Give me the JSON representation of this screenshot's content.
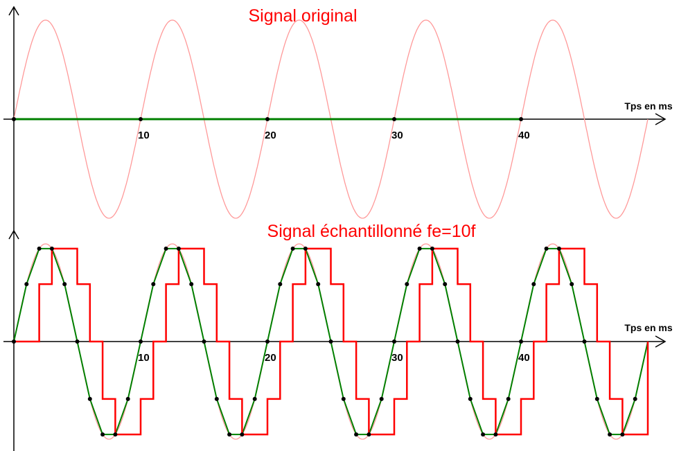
{
  "chart_data": [
    {
      "type": "line",
      "title": "Signal original",
      "xlabel": "Tps en ms",
      "ylabel": "",
      "x_ticks": [
        10,
        20,
        30,
        40
      ],
      "xlim": [
        0,
        50
      ],
      "ylim": [
        -1,
        1
      ],
      "grid": false,
      "series": [
        {
          "kind": "sine",
          "amplitude": 1,
          "period_ms": 10,
          "x_range": [
            0,
            50
          ],
          "color": "#ff9999"
        },
        {
          "kind": "constant",
          "value": 0,
          "x_range": [
            0,
            40
          ],
          "color": "#008000"
        }
      ],
      "markers": {
        "x": [
          0,
          10,
          20,
          30,
          40
        ],
        "y": [
          0,
          0,
          0,
          0,
          0
        ],
        "color": "#000000"
      }
    },
    {
      "type": "line",
      "title": "Signal échantillonné fe=10f",
      "xlabel": "Tps en ms",
      "ylabel": "",
      "x_ticks": [
        10,
        20,
        30,
        40
      ],
      "xlim": [
        0,
        50
      ],
      "ylim": [
        -1,
        1
      ],
      "grid": false,
      "sampling_period_ms": 1,
      "series": [
        {
          "kind": "sine",
          "amplitude": 1,
          "period_ms": 10,
          "x_range": [
            0,
            50
          ],
          "color": "#ff9999"
        },
        {
          "kind": "sampled-linear",
          "x_range": [
            0,
            50
          ],
          "color": "#008000"
        },
        {
          "kind": "zero-order-hold",
          "x_range": [
            0,
            50
          ],
          "color": "#ff0000"
        }
      ],
      "markers": {
        "x_range": [
          0,
          49
        ],
        "step_ms": 1,
        "color": "#000000"
      }
    }
  ],
  "colors": {
    "signal": "#ff9999",
    "sampled": "#008000",
    "hold": "#ff0000",
    "title": "#ff0000",
    "axis": "#000000"
  }
}
